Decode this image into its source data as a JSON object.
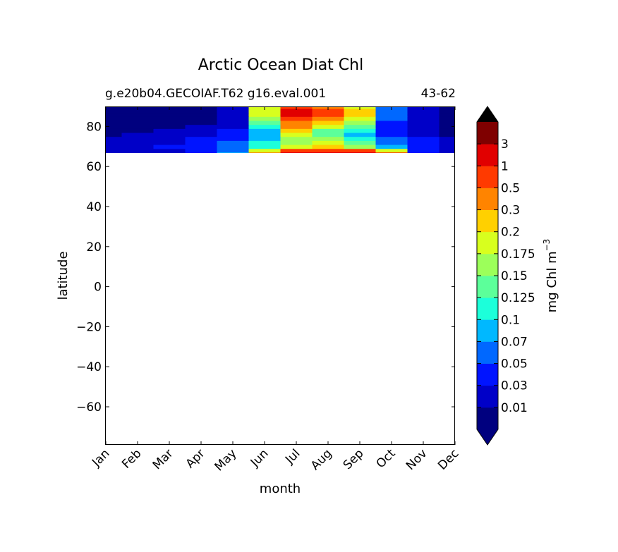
{
  "chart_data": {
    "type": "heatmap",
    "title": "Arctic Ocean Diat Chl",
    "subtitle_left": "g.e20b04.GECOIAF.T62 g16.eval.001",
    "subtitle_right": "43-62",
    "xlabel": "month",
    "ylabel": "latitude",
    "x_ticks": [
      "Jan",
      "Feb",
      "Mar",
      "Apr",
      "May",
      "Jun",
      "Jul",
      "Aug",
      "Sep",
      "Oct",
      "Nov",
      "Dec"
    ],
    "y_ticks": [
      80,
      60,
      40,
      20,
      0,
      -20,
      -40,
      -60
    ],
    "ylim": [
      -79,
      90
    ],
    "data_lat_range": [
      66,
      90
    ],
    "colorbar": {
      "label": "mg Chl m",
      "label_superscript": "−3",
      "extend": "both",
      "levels": [
        "0.01",
        "0.03",
        "0.05",
        "0.07",
        "0.1",
        "0.125",
        "0.15",
        "0.175",
        "0.2",
        "0.3",
        "0.5",
        "1",
        "3"
      ],
      "colors": [
        "#00007f",
        "#0000c8",
        "#0014ff",
        "#0068ff",
        "#00b8ff",
        "#1cffda",
        "#5cff9a",
        "#9cff5a",
        "#d8ff1e",
        "#ffd000",
        "#ff8400",
        "#ff3a00",
        "#e10000",
        "#7f0000"
      ],
      "under_color": "#00007f",
      "over_color": "#000000"
    },
    "grid": false,
    "lat_rows": [
      66.5,
      68,
      70,
      72,
      74,
      76,
      78,
      80,
      82,
      84,
      86,
      88,
      90
    ],
    "bin_index_grid": [
      [
        1,
        1,
        1,
        2,
        4,
        10,
        12,
        12,
        12,
        11,
        2,
        1
      ],
      [
        1,
        1,
        1,
        2,
        3,
        8,
        11,
        11,
        11,
        8,
        2,
        1
      ],
      [
        1,
        1,
        2,
        2,
        3,
        5,
        8,
        9,
        7,
        4,
        2,
        1
      ],
      [
        1,
        1,
        1,
        2,
        3,
        5,
        7,
        8,
        6,
        3,
        2,
        1
      ],
      [
        1,
        1,
        1,
        2,
        2,
        4,
        7,
        7,
        5,
        3,
        2,
        1
      ],
      [
        0,
        1,
        1,
        1,
        2,
        4,
        8,
        6,
        4,
        2,
        1,
        0
      ],
      [
        0,
        0,
        1,
        1,
        2,
        4,
        9,
        6,
        5,
        2,
        1,
        0
      ],
      [
        0,
        0,
        0,
        1,
        1,
        5,
        10,
        8,
        6,
        2,
        1,
        0
      ],
      [
        0,
        0,
        0,
        0,
        1,
        6,
        10,
        9,
        7,
        2,
        1,
        0
      ],
      [
        0,
        0,
        0,
        0,
        1,
        7,
        11,
        10,
        8,
        3,
        1,
        0
      ],
      [
        0,
        0,
        0,
        0,
        1,
        8,
        12,
        11,
        9,
        3,
        1,
        0
      ],
      [
        0,
        0,
        0,
        0,
        1,
        8,
        12,
        11,
        9,
        3,
        1,
        0
      ],
      [
        0,
        0,
        0,
        0,
        1,
        8,
        11,
        10,
        8,
        3,
        1,
        0
      ]
    ]
  }
}
